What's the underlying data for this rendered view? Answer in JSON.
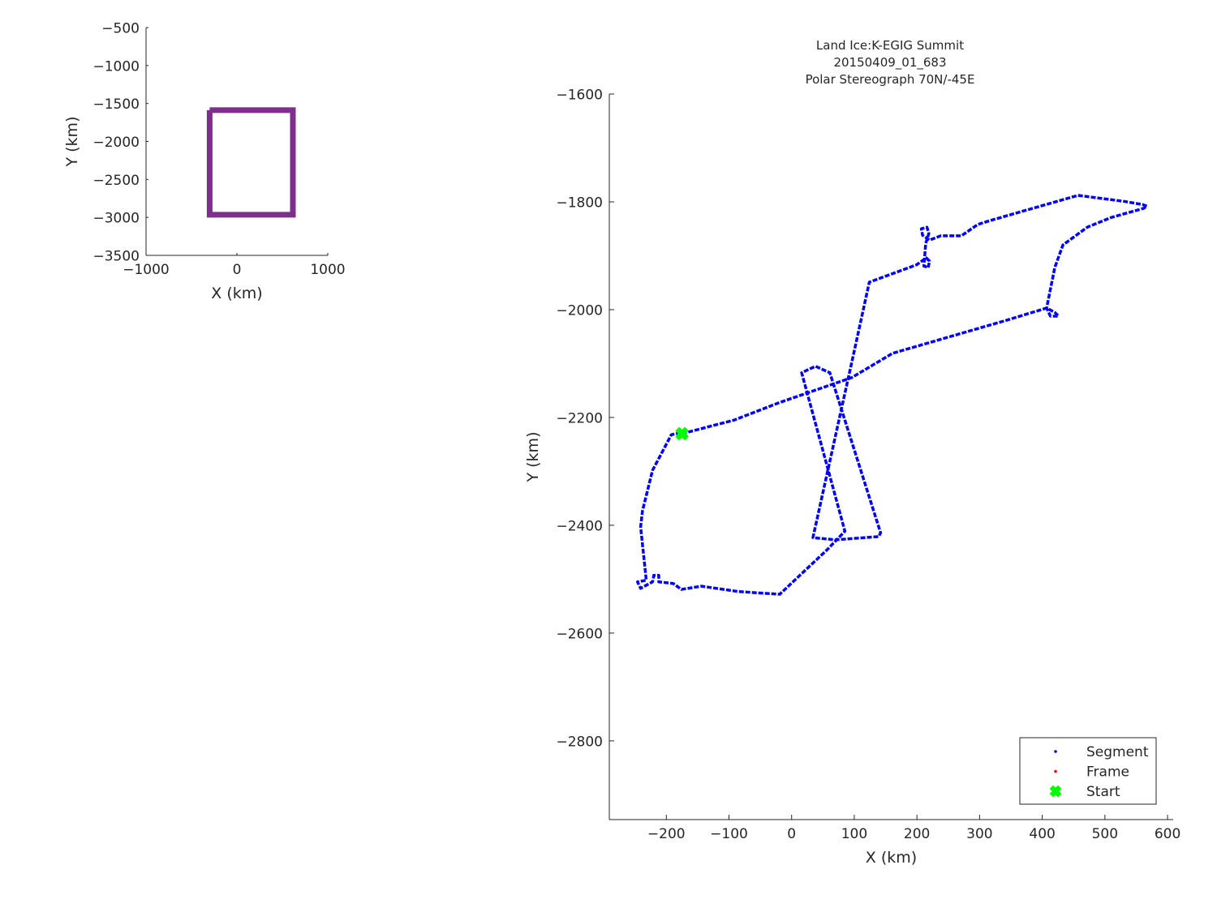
{
  "chart_data": [
    {
      "type": "line",
      "xlabel": "X (km)",
      "ylabel": "Y (km)",
      "xlim": [
        -1000,
        1000
      ],
      "ylim": [
        -3500,
        -500
      ],
      "xticks": [
        -1000,
        0,
        1000
      ],
      "yticks": [
        -500,
        -1000,
        -1500,
        -2000,
        -2500,
        -3000,
        -3500
      ],
      "grid": false,
      "series": [
        {
          "color": "#7E2F8E",
          "x": [
            -300,
            616,
            616,
            -300,
            -300
          ],
          "y": [
            -1588,
            -1588,
            -2965,
            -2965,
            -1588
          ]
        }
      ]
    },
    {
      "type": "scatter",
      "title": [
        "Land Ice:K-EGIG Summit",
        "20150409_01_683",
        "Polar Stereograph 70N/-45E"
      ],
      "xlabel": "X (km)",
      "ylabel": "Y (km)",
      "xlim": [
        -291,
        609
      ],
      "ylim": [
        -2946,
        -1600
      ],
      "xticks": [
        -200,
        -100,
        0,
        100,
        200,
        300,
        400,
        500,
        600
      ],
      "yticks": [
        -1600,
        -1800,
        -2000,
        -2200,
        -2400,
        -2600,
        -2800
      ],
      "grid": false,
      "legend_position": "bottom-right",
      "legend": [
        {
          "name": "Segment",
          "color": "#0000FF",
          "marker": "dot"
        },
        {
          "name": "Frame",
          "color": "#FF0000",
          "marker": "dot"
        },
        {
          "name": "Start",
          "color": "#00FF00",
          "marker": "x-filled"
        }
      ],
      "segment": {
        "x": [
          -175,
          -92,
          -21,
          96,
          161,
          342,
          407,
          420,
          426,
          413,
          407,
          420,
          433,
          472,
          510,
          562,
          567,
          560,
          530,
          497,
          457,
          316,
          297,
          271,
          238,
          220,
          209,
          207,
          216,
          219,
          214,
          212,
          211,
          218,
          220,
          215,
          199,
          124,
          98,
          34,
          70,
          139,
          142,
          61,
          38,
          16,
          85,
          57,
          -19,
          -85,
          -144,
          -176,
          -189,
          -212,
          -212,
          -220,
          -222,
          -241,
          -246,
          -232,
          -241,
          -238,
          -222,
          -192,
          -180
        ],
        "y": [
          -2230,
          -2205,
          -2173,
          -2126,
          -2081,
          -2020,
          -1997,
          -2005,
          -2012,
          -2012,
          -1997,
          -1922,
          -1880,
          -1847,
          -1829,
          -1812,
          -1808,
          -1805,
          -1799,
          -1794,
          -1788,
          -1835,
          -1842,
          -1863,
          -1863,
          -1871,
          -1862,
          -1850,
          -1847,
          -1859,
          -1877,
          -1907,
          -1919,
          -1922,
          -1910,
          -1904,
          -1917,
          -1949,
          -2087,
          -2423,
          -2427,
          -2421,
          -2414,
          -2117,
          -2105,
          -2117,
          -2411,
          -2445,
          -2528,
          -2523,
          -2513,
          -2519,
          -2508,
          -2505,
          -2493,
          -2493,
          -2505,
          -2517,
          -2505,
          -2502,
          -2403,
          -2373,
          -2298,
          -2232,
          -2229
        ]
      },
      "start": {
        "x": -175,
        "y": -2230
      }
    }
  ]
}
